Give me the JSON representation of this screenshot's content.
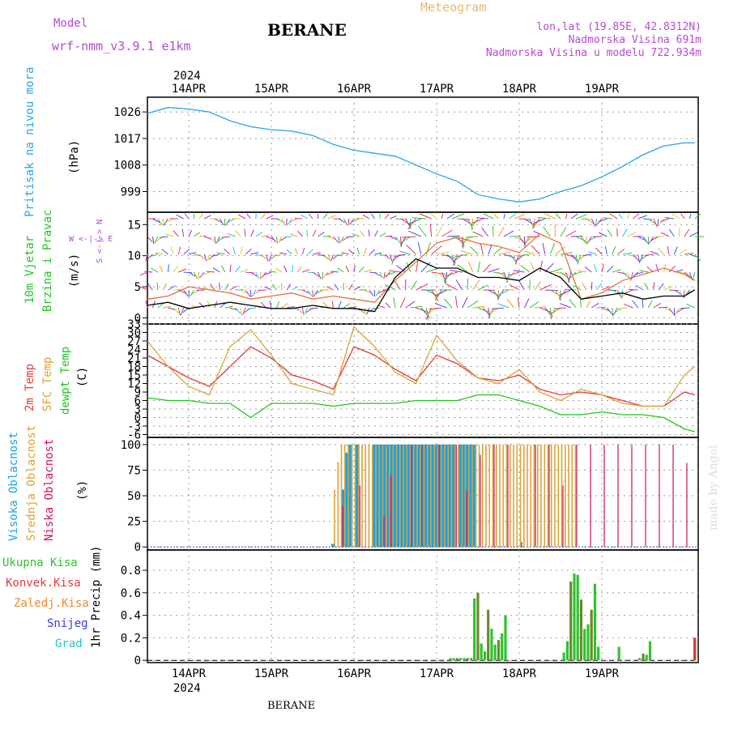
{
  "header": {
    "model_label": "Model",
    "model_name": "wrf-nmm_v3.9.1 e1km",
    "station": "BERANE",
    "meteogram": "Meteogram",
    "coords": "lon,lat (19.85E, 42.8312N)",
    "elevation": "Nadmorska Visina 691m",
    "model_elevation": "Nadmorska Visina u modelu 722.934m",
    "year": "2024",
    "footer_station": "BERANE",
    "watermark": "made by Angel"
  },
  "colors": {
    "pressure": "#2aa3e6",
    "temp2m": "#e23a3a",
    "sfc": "#d9a43a",
    "dewpt": "#22c422",
    "high_cloud": "#1aa0e6",
    "mid_cloud": "#d9a43a",
    "low_cloud": "#d01060",
    "total_precip": "#2ec42e",
    "conv_precip": "#e23a3a",
    "freezing_precip": "#f08a2a",
    "snow": "#3a3ae6",
    "hail": "#22c4c4",
    "model_text": "#b44ad6",
    "meteogram_text": "#e8b870"
  },
  "chart_data": [
    {
      "type": "line",
      "panel": "pressure",
      "ylabel_main": "Pritisak na nivou mora",
      "ylabel_unit": "(hPa)",
      "x_ticks": [
        "14APR",
        "15APR",
        "16APR",
        "17APR",
        "18APR",
        "19APR"
      ],
      "x_start_label": "2024",
      "yticks": [
        999,
        1008,
        1017,
        1026
      ],
      "ylim": [
        992,
        1031
      ],
      "x": [
        0,
        6,
        12,
        18,
        24,
        30,
        36,
        42,
        48,
        54,
        60,
        66,
        72,
        78,
        84,
        90,
        96,
        102,
        108,
        114,
        120,
        126,
        132,
        138,
        144,
        150,
        156,
        159
      ],
      "values": [
        1025.5,
        1027.5,
        1027.0,
        1026.0,
        1023.0,
        1021.0,
        1020.0,
        1019.5,
        1018.0,
        1015.0,
        1013.0,
        1012.0,
        1011.0,
        1008.0,
        1005.0,
        1002.5,
        998.0,
        996.5,
        995.5,
        996.5,
        999.0,
        1001.0,
        1004.0,
        1007.5,
        1011.5,
        1014.5,
        1015.5,
        1015.5
      ],
      "grid": true
    },
    {
      "type": "line",
      "panel": "wind",
      "ylabel_main": "10m Vjetar",
      "ylabel_sub": "Brzina i Pravac",
      "ylabel_unit": "(m/s)",
      "compass": "W <-|-> E",
      "compass_v": "S <-|-> N",
      "yticks": [
        0,
        5,
        10,
        15
      ],
      "ylim": [
        -1,
        17
      ],
      "x": [
        0,
        6,
        12,
        18,
        24,
        30,
        36,
        42,
        48,
        54,
        60,
        66,
        72,
        78,
        84,
        90,
        96,
        102,
        108,
        114,
        120,
        126,
        132,
        138,
        144,
        150,
        156,
        159
      ],
      "values": [
        2.0,
        2.5,
        1.5,
        2.0,
        2.5,
        2.0,
        1.5,
        1.5,
        2.0,
        1.5,
        1.5,
        1.0,
        6.5,
        9.5,
        8.0,
        8.0,
        6.5,
        6.5,
        6.0,
        8.0,
        6.5,
        3.0,
        3.5,
        4.0,
        3.0,
        3.5,
        3.5,
        4.5
      ],
      "gust": [
        3.0,
        3.5,
        5.0,
        4.5,
        4.0,
        3.0,
        3.5,
        4.0,
        3.0,
        3.5,
        3.0,
        2.5,
        6.0,
        9.0,
        12.0,
        13.0,
        12.0,
        11.5,
        10.5,
        13.5,
        12.0,
        3.0,
        4.0,
        6.0,
        7.0,
        8.0,
        7.0,
        6.0
      ],
      "grid": true
    },
    {
      "type": "line",
      "panel": "temperature",
      "ylabel_main": "2m Temp",
      "ylabel_sub": "SFC Temp",
      "ylabel_sub2": "dewpt Temp",
      "ylabel_unit": "(C)",
      "yticks": [
        -6,
        -3,
        0,
        3,
        6,
        9,
        12,
        15,
        18,
        21,
        24,
        27,
        30,
        33
      ],
      "ylim": [
        -7,
        33
      ],
      "x": [
        0,
        6,
        12,
        18,
        24,
        30,
        36,
        42,
        48,
        54,
        60,
        66,
        72,
        78,
        84,
        90,
        96,
        102,
        108,
        114,
        120,
        126,
        132,
        138,
        144,
        150,
        156,
        159
      ],
      "series": [
        {
          "name": "2m Temp",
          "values": [
            22,
            18,
            14,
            11,
            18,
            25,
            21,
            15,
            13,
            10,
            25,
            22,
            17,
            13,
            22,
            19,
            14,
            13,
            15,
            10,
            8,
            9,
            8,
            6,
            4,
            4,
            9,
            8
          ]
        },
        {
          "name": "SFC Temp",
          "values": [
            27,
            18,
            11,
            8,
            25,
            31,
            22,
            12,
            10,
            8,
            32,
            25,
            16,
            12,
            29,
            20,
            14,
            12,
            17,
            9,
            6,
            10,
            8,
            5,
            4,
            4,
            15,
            18
          ]
        },
        {
          "name": "dewpt Temp",
          "values": [
            7,
            6,
            6,
            5,
            5,
            0,
            5,
            5,
            5,
            4,
            5,
            5,
            5,
            6,
            6,
            6,
            8,
            8,
            6,
            4,
            1,
            1,
            2,
            1,
            1,
            0,
            -4,
            -5
          ]
        }
      ],
      "grid": true
    },
    {
      "type": "bar",
      "panel": "cloud",
      "ylabel_main": "Visoka Oblacnost",
      "ylabel_sub": "Srednja Oblacnost",
      "ylabel_sub2": "Niska Oblacnost",
      "ylabel_unit": "(%)",
      "yticks": [
        0,
        25,
        50,
        75,
        100
      ],
      "ylim": [
        -3,
        107
      ],
      "series": [
        {
          "name": "Visoka Oblacnost",
          "x": [
            54,
            57,
            58,
            59,
            61,
            66,
            67,
            68,
            69,
            70,
            71,
            72,
            73,
            74,
            75,
            76,
            77,
            78,
            79,
            80,
            81,
            82,
            83,
            84,
            85,
            86,
            87,
            88,
            89,
            91,
            92,
            93,
            94,
            95
          ],
          "values": [
            3,
            56,
            92,
            100,
            100,
            100,
            100,
            100,
            100,
            100,
            100,
            100,
            100,
            100,
            100,
            100,
            100,
            100,
            100,
            100,
            100,
            100,
            100,
            100,
            100,
            100,
            100,
            100,
            100,
            100,
            100,
            100,
            100,
            100
          ]
        },
        {
          "name": "Srednja Oblacnost",
          "x": [
            54,
            55,
            56,
            57,
            58,
            59,
            60,
            61,
            62,
            63,
            64,
            65,
            66,
            67,
            68,
            69,
            70,
            71,
            72,
            73,
            74,
            75,
            76,
            77,
            78,
            79,
            80,
            81,
            82,
            83,
            84,
            85,
            86,
            87,
            88,
            89,
            90,
            91,
            92,
            93,
            94,
            95,
            96,
            97,
            98,
            99,
            100,
            101,
            102,
            103,
            104,
            105,
            106,
            107,
            108,
            109,
            110,
            111,
            112,
            113,
            114,
            115,
            116,
            117,
            118,
            119,
            120,
            121,
            122,
            123,
            124
          ],
          "values": [
            56,
            83,
            100,
            100,
            100,
            100,
            100,
            100,
            100,
            100,
            100,
            100,
            100,
            100,
            100,
            100,
            100,
            100,
            100,
            100,
            100,
            100,
            100,
            100,
            100,
            100,
            100,
            100,
            100,
            100,
            100,
            100,
            100,
            100,
            100,
            100,
            100,
            100,
            100,
            100,
            100,
            100,
            100,
            100,
            100,
            100,
            100,
            100,
            100,
            100,
            100,
            100,
            100,
            100,
            100,
            100,
            100,
            100,
            100,
            100,
            100,
            100,
            100,
            100,
            100,
            100,
            100,
            100,
            100,
            100,
            100
          ]
        },
        {
          "name": "Niska Oblacnost",
          "x": [
            56,
            61,
            68,
            70,
            76,
            79,
            84,
            89,
            92,
            96,
            100,
            104,
            108,
            112,
            116,
            120,
            124,
            128,
            132,
            136,
            140,
            144,
            148,
            152,
            156
          ],
          "values": [
            40,
            60,
            30,
            70,
            100,
            100,
            100,
            100,
            55,
            90,
            100,
            100,
            5,
            100,
            100,
            60,
            100,
            100,
            100,
            100,
            100,
            100,
            100,
            100,
            82
          ]
        }
      ],
      "grid": true
    },
    {
      "type": "bar",
      "panel": "precip",
      "ylabel_main": "1hr Precip (mm)",
      "legend": [
        "Ukupna Kisa",
        "Konvek.Kisa",
        "Zaledj.Kisa",
        "Snijeg",
        "Grad"
      ],
      "yticks": [
        0,
        0.2,
        0.4,
        0.6,
        0.8
      ],
      "ylim": [
        -0.02,
        0.98
      ],
      "x_ticks": [
        "14APR",
        "15APR",
        "16APR",
        "17APR",
        "18APR",
        "19APR"
      ],
      "x_end_label": "2024",
      "series": [
        {
          "name": "Ukupna Kisa",
          "x": [
            85,
            86,
            87,
            88,
            89,
            90,
            91,
            92,
            93,
            94,
            95,
            96,
            97,
            98,
            99,
            100,
            101,
            102,
            103,
            104,
            113,
            114,
            115,
            116,
            117,
            118,
            119,
            120,
            121,
            122,
            123,
            124,
            125,
            126,
            127,
            128,
            129,
            130,
            131,
            132,
            133,
            134,
            135,
            136,
            137,
            138,
            139,
            140,
            141,
            142,
            143,
            144,
            145,
            146,
            147,
            148,
            149,
            150,
            151,
            152,
            153,
            154,
            155,
            156,
            157,
            158,
            159
          ],
          "values": [
            0,
            0,
            0,
            0.02,
            0.02,
            0.02,
            0.02,
            0.02,
            0.02,
            0.02,
            0.55,
            0.6,
            0.15,
            0.08,
            0.45,
            0.28,
            0.14,
            0.18,
            0.24,
            0.4,
            0,
            0,
            0,
            0,
            0,
            0,
            0,
            0,
            0.07,
            0.17,
            0.7,
            0.77,
            0.76,
            0.54,
            0.28,
            0.32,
            0.45,
            0.68,
            0.12,
            0,
            0,
            0,
            0,
            0,
            0.12,
            0,
            0,
            0,
            0,
            0,
            0.02,
            0.06,
            0.05,
            0.17,
            0,
            0,
            0,
            0,
            0,
            0,
            0,
            0,
            0,
            0,
            0,
            0,
            0.2
          ]
        },
        {
          "name": "Konvek.Kisa",
          "x": [
            159
          ],
          "values": [
            0.2
          ]
        }
      ],
      "grid": true
    }
  ]
}
